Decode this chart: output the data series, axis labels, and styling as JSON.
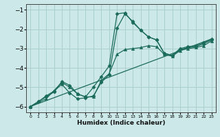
{
  "xlabel": "Humidex (Indice chaleur)",
  "ylabel": "",
  "bg_color": "#cce8e8",
  "grid_color": "#aacece",
  "line_color": "#1a6b5a",
  "xlim": [
    -0.5,
    23.5
  ],
  "ylim": [
    -6.3,
    -0.7
  ],
  "xticks": [
    0,
    1,
    2,
    3,
    4,
    5,
    6,
    7,
    8,
    9,
    10,
    11,
    12,
    13,
    14,
    15,
    16,
    17,
    18,
    19,
    20,
    21,
    22,
    23
  ],
  "yticks": [
    -6,
    -5,
    -4,
    -3,
    -2,
    -1
  ],
  "series": [
    {
      "x": [
        0,
        1,
        2,
        3,
        4,
        5,
        6,
        7,
        8,
        9,
        10,
        11,
        12,
        13,
        14,
        15,
        16,
        17,
        18,
        19,
        20,
        21,
        22,
        23
      ],
      "y": [
        -6.0,
        -5.75,
        -5.5,
        -5.25,
        -4.7,
        -4.9,
        -5.35,
        -5.5,
        -5.0,
        -4.45,
        -3.9,
        -1.2,
        -1.15,
        -1.65,
        -2.05,
        -2.4,
        -2.55,
        -3.25,
        -3.35,
        -3.0,
        -2.9,
        -2.85,
        -2.7,
        -2.5
      ],
      "marker": "D",
      "ms": 2.5,
      "lw": 0.9
    },
    {
      "x": [
        0,
        1,
        2,
        3,
        4,
        5,
        6,
        7,
        8,
        9,
        10,
        11,
        12,
        13,
        14,
        15,
        16,
        17,
        18,
        19,
        20,
        21,
        22,
        23
      ],
      "y": [
        -6.0,
        -5.75,
        -5.45,
        -5.2,
        -4.85,
        -5.3,
        -5.6,
        -5.55,
        -5.45,
        -4.75,
        -4.35,
        -1.95,
        -1.2,
        -1.6,
        -2.05,
        -2.4,
        -2.55,
        -3.25,
        -3.35,
        -3.05,
        -2.95,
        -2.9,
        -2.75,
        -2.55
      ],
      "marker": "D",
      "ms": 2.5,
      "lw": 0.9
    },
    {
      "x": [
        0,
        2,
        4,
        5,
        6,
        7,
        8,
        9,
        10,
        11,
        12,
        13,
        14,
        15,
        16,
        17,
        18,
        19,
        20,
        21,
        22,
        23
      ],
      "y": [
        -6.0,
        -5.6,
        -4.75,
        -5.0,
        -5.35,
        -5.5,
        -5.5,
        -4.65,
        -4.3,
        -3.3,
        -3.05,
        -3.0,
        -2.95,
        -2.85,
        -2.9,
        -3.3,
        -3.4,
        -3.1,
        -3.0,
        -2.95,
        -2.85,
        -2.6
      ],
      "marker": "^",
      "ms": 3.0,
      "lw": 0.9
    },
    {
      "x": [
        0,
        23
      ],
      "y": [
        -6.0,
        -2.5
      ],
      "marker": null,
      "ms": 0,
      "lw": 0.9
    }
  ]
}
